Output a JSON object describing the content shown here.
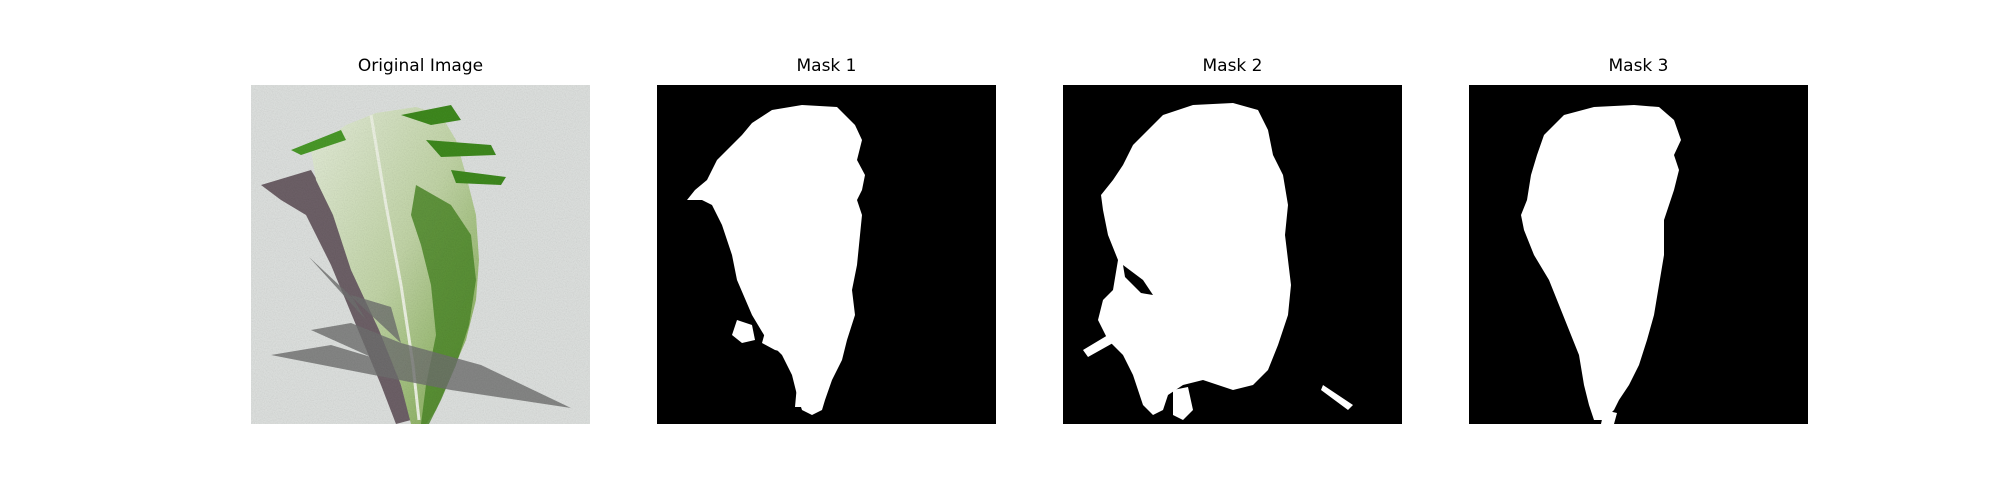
{
  "figure": {
    "panels": [
      {
        "title": "Original Image"
      },
      {
        "title": "Mask 1"
      },
      {
        "title": "Mask 2"
      },
      {
        "title": "Mask 3"
      }
    ]
  },
  "colors": {
    "mask_background": "#000000",
    "mask_foreground": "#ffffff",
    "photo_background": "#dfe2e0",
    "leaf": "#c9d8b4",
    "leaf_dark": "#4f8a2a",
    "shadow": "#5a4a52",
    "overlay": "#6f706f"
  }
}
